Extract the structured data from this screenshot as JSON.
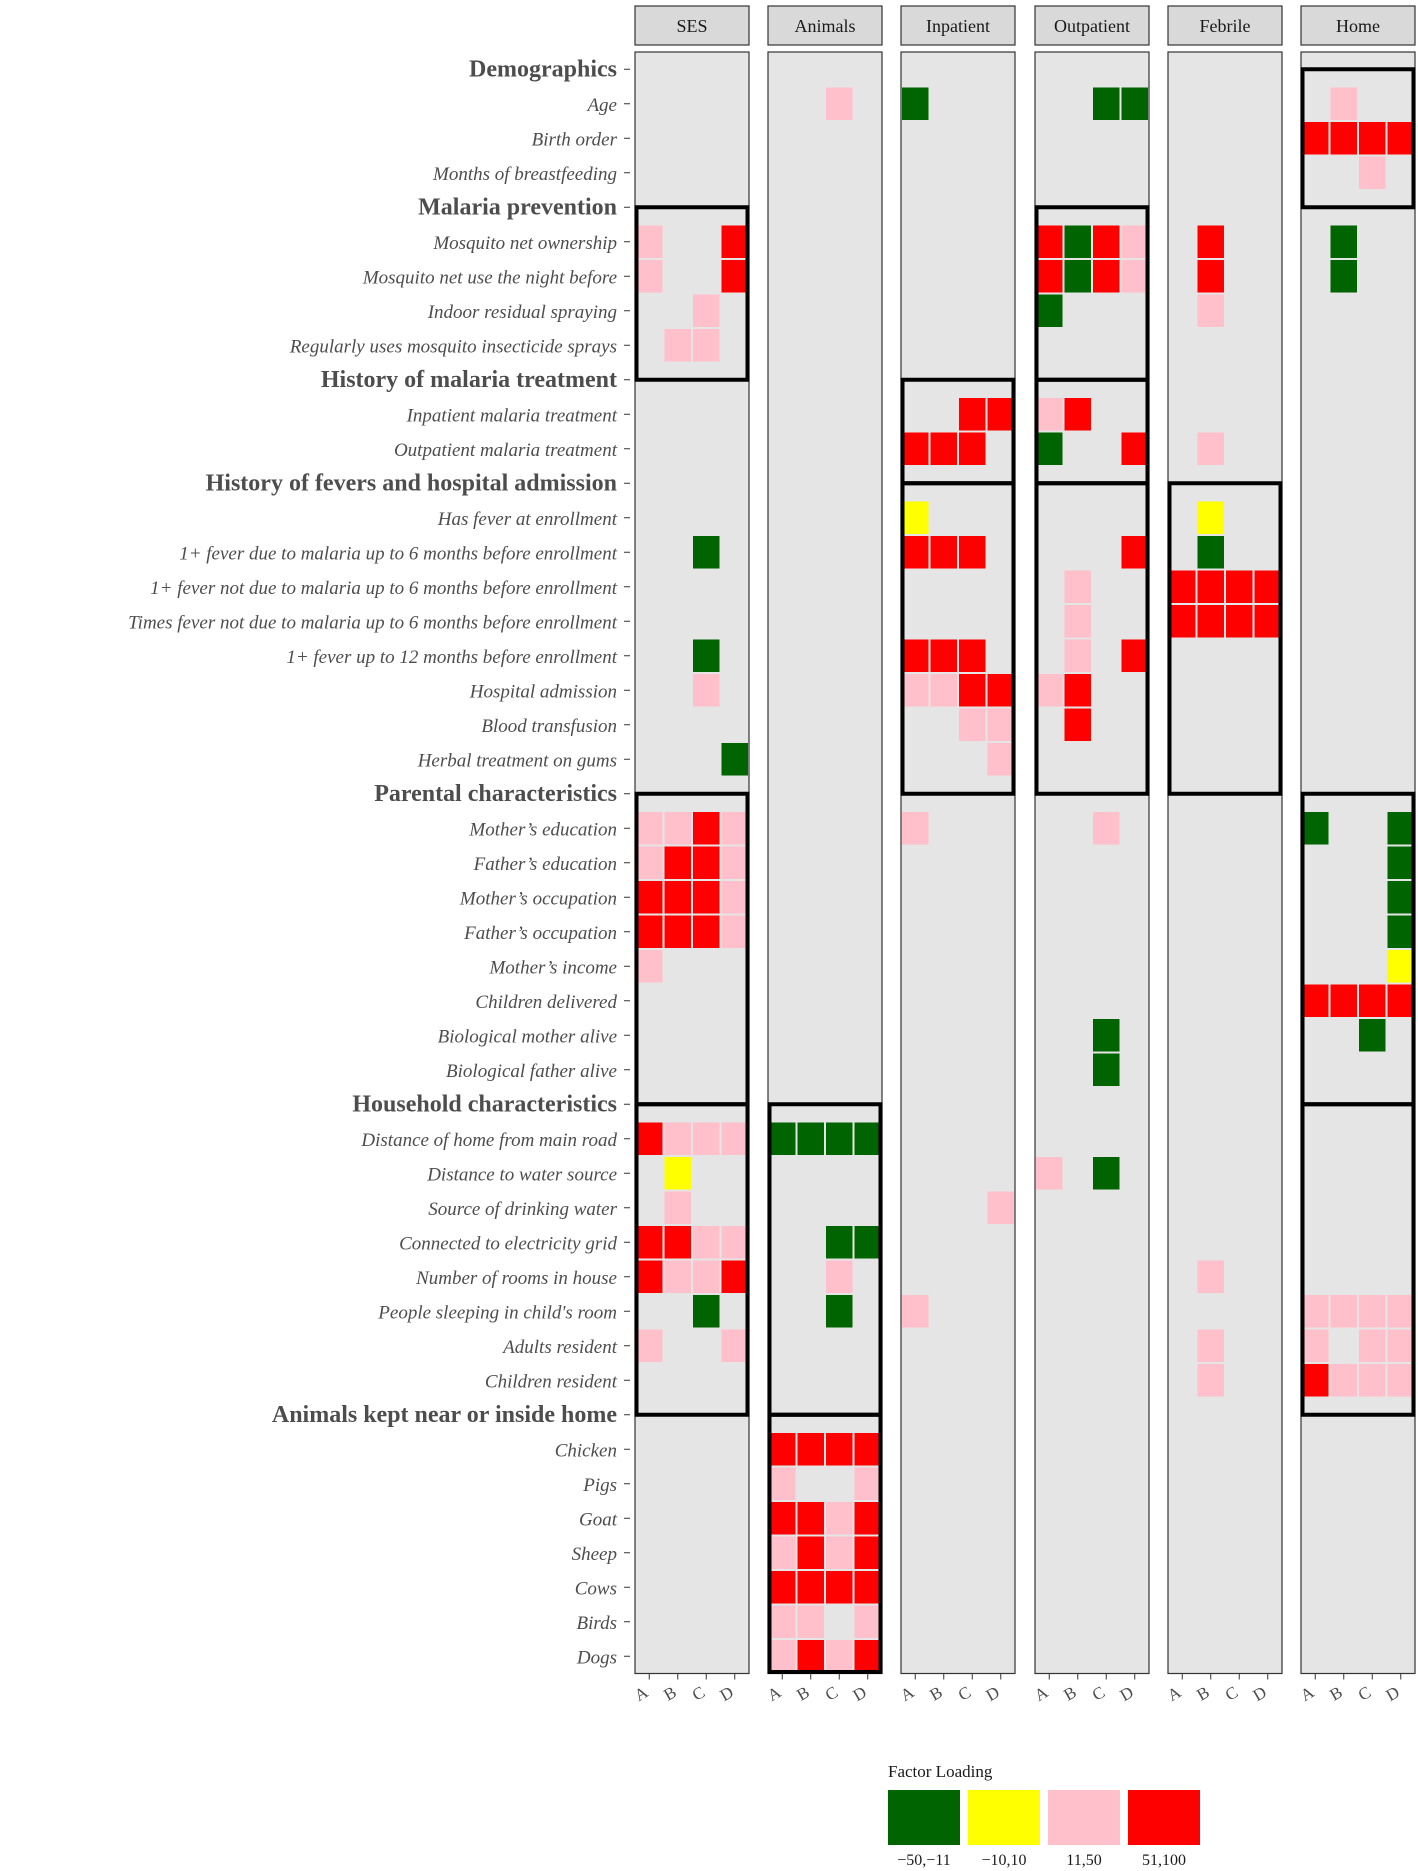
{
  "chart_data": {
    "type": "heatmap",
    "title": "",
    "panels": [
      "SES",
      "Animals",
      "Inpatient",
      "Outpatient",
      "Febrile",
      "Home"
    ],
    "factors": [
      "A",
      "B",
      "C",
      "D"
    ],
    "rows": [
      {
        "label": "Demographics",
        "kind": "group"
      },
      {
        "label": "Age",
        "kind": "var"
      },
      {
        "label": "Birth order",
        "kind": "var"
      },
      {
        "label": "Months of breastfeeding",
        "kind": "var"
      },
      {
        "label": "Malaria prevention",
        "kind": "group"
      },
      {
        "label": "Mosquito net ownership",
        "kind": "var"
      },
      {
        "label": "Mosquito net use the night before",
        "kind": "var"
      },
      {
        "label": "Indoor residual spraying",
        "kind": "var"
      },
      {
        "label": "Regularly uses mosquito insecticide sprays",
        "kind": "var"
      },
      {
        "label": "History of malaria treatment",
        "kind": "group"
      },
      {
        "label": "Inpatient malaria treatment",
        "kind": "var"
      },
      {
        "label": "Outpatient malaria treatment",
        "kind": "var"
      },
      {
        "label": "History of fevers and hospital admission",
        "kind": "group"
      },
      {
        "label": "Has fever at enrollment",
        "kind": "var"
      },
      {
        "label": "1+ fever due to malaria up to 6 months before enrollment",
        "kind": "var"
      },
      {
        "label": "1+ fever not due to malaria up to 6 months before enrollment",
        "kind": "var"
      },
      {
        "label": "Times fever not due to malaria up to 6 months before enrollment",
        "kind": "var"
      },
      {
        "label": "1+ fever up to 12 months before enrollment",
        "kind": "var"
      },
      {
        "label": "Hospital admission",
        "kind": "var"
      },
      {
        "label": "Blood transfusion",
        "kind": "var"
      },
      {
        "label": "Herbal treatment on gums",
        "kind": "var"
      },
      {
        "label": "Parental characteristics",
        "kind": "group"
      },
      {
        "label": "Mother’s education",
        "kind": "var"
      },
      {
        "label": "Father’s education",
        "kind": "var"
      },
      {
        "label": "Mother’s occupation",
        "kind": "var"
      },
      {
        "label": "Father’s occupation",
        "kind": "var"
      },
      {
        "label": "Mother’s income",
        "kind": "var"
      },
      {
        "label": "Children delivered",
        "kind": "var"
      },
      {
        "label": "Biological mother alive",
        "kind": "var"
      },
      {
        "label": "Biological father alive",
        "kind": "var"
      },
      {
        "label": "Household characteristics",
        "kind": "group"
      },
      {
        "label": "Distance of home from main road",
        "kind": "var"
      },
      {
        "label": "Distance to water source",
        "kind": "var"
      },
      {
        "label": "Source of drinking water",
        "kind": "var"
      },
      {
        "label": "Connected to electricity grid",
        "kind": "var"
      },
      {
        "label": "Number of rooms in house",
        "kind": "var"
      },
      {
        "label": "People sleeping in child's room",
        "kind": "var"
      },
      {
        "label": "Adults resident",
        "kind": "var"
      },
      {
        "label": "Children resident",
        "kind": "var"
      },
      {
        "label": "Animals kept near or inside home",
        "kind": "group"
      },
      {
        "label": "Chicken",
        "kind": "var"
      },
      {
        "label": "Pigs",
        "kind": "var"
      },
      {
        "label": "Goat",
        "kind": "var"
      },
      {
        "label": "Sheep",
        "kind": "var"
      },
      {
        "label": "Cows",
        "kind": "var"
      },
      {
        "label": "Birds",
        "kind": "var"
      },
      {
        "label": "Dogs",
        "kind": "var"
      }
    ],
    "loading_codes": {
      "g": "−50,−11",
      "y": "−10,10",
      "p": "11,50",
      "r": "51,100"
    },
    "cells": {
      "SES": [
        "....",
        "....",
        "....",
        "....",
        "....",
        "p..r",
        "p..r",
        "..p.",
        ".pp.",
        "....",
        "....",
        "....",
        "....",
        "....",
        "..g.",
        "....",
        "....",
        "..g.",
        "..p.",
        "....",
        "...g",
        "....",
        "pprp",
        "prrp",
        "rrrp",
        "rrrp",
        "p...",
        "....",
        "....",
        "....",
        "....",
        "rppp",
        ".y..",
        ".p..",
        "rrpp",
        "rppr",
        "..g.",
        "p..p",
        "....",
        "....",
        "....",
        "....",
        "....",
        "....",
        "....",
        "....",
        "...."
      ],
      "Animals": [
        "....",
        "..p.",
        "....",
        "....",
        "....",
        "....",
        "....",
        "....",
        "....",
        "....",
        "....",
        "....",
        "....",
        "....",
        "....",
        "....",
        "....",
        "....",
        "....",
        "....",
        "....",
        "....",
        "....",
        "....",
        "....",
        "....",
        "....",
        "....",
        "....",
        "....",
        "....",
        "gggg",
        "....",
        "....",
        "..gg",
        "..p.",
        "..g.",
        "....",
        "....",
        "....",
        "rrrr",
        "p..p",
        "rrpr",
        "prpr",
        "rrrr",
        "pp.p",
        "prpr"
      ],
      "Inpatient": [
        "....",
        "g...",
        "....",
        "....",
        "....",
        "....",
        "....",
        "....",
        "....",
        "....",
        "..rr",
        "rrr.",
        "....",
        "y...",
        "rrr.",
        "....",
        "....",
        "rrr.",
        "pprr",
        "..pp",
        "...p",
        "....",
        "p...",
        "....",
        "....",
        "....",
        "....",
        "....",
        "....",
        "....",
        "....",
        "....",
        "....",
        "...p",
        "....",
        "....",
        "p...",
        "....",
        "....",
        "....",
        "....",
        "....",
        "....",
        "....",
        "....",
        "....",
        "...."
      ],
      "Outpatient": [
        "....",
        "..gg",
        "....",
        "....",
        "....",
        "rgrp",
        "rgrp",
        "g...",
        "....",
        "....",
        "pr..",
        "g..r",
        "....",
        "....",
        "...r",
        ".p..",
        ".p..",
        ".p.r",
        "pr..",
        ".r..",
        "....",
        "....",
        "..p.",
        "....",
        "....",
        "....",
        "....",
        "....",
        "..g.",
        "..g.",
        "....",
        "....",
        "p.g.",
        "....",
        "....",
        "....",
        "....",
        "....",
        "....",
        "....",
        "....",
        "....",
        "....",
        "....",
        "....",
        "....",
        "...."
      ],
      "Febrile": [
        "....",
        "....",
        "....",
        "....",
        "....",
        ".r..",
        ".r..",
        ".p..",
        "....",
        "....",
        "....",
        ".p..",
        "....",
        ".y..",
        ".g..",
        "rrrr",
        "rrrr",
        "....",
        "....",
        "....",
        "....",
        "....",
        "....",
        "....",
        "....",
        "....",
        "....",
        "....",
        "....",
        "....",
        "....",
        "....",
        "....",
        "....",
        "....",
        ".p..",
        "....",
        ".p..",
        ".p..",
        "....",
        "....",
        "....",
        "....",
        "....",
        "....",
        "....",
        "...."
      ],
      "Home": [
        "....",
        ".p..",
        "rrrr",
        "..p.",
        "....",
        ".g..",
        ".g..",
        "....",
        "....",
        "....",
        "....",
        "....",
        "....",
        "....",
        "....",
        "....",
        "....",
        "....",
        "....",
        "....",
        "....",
        "....",
        "g..g",
        "...g",
        "...g",
        "...g",
        "...y",
        "rrrr",
        "..g.",
        "....",
        "....",
        "....",
        "....",
        "....",
        "....",
        "....",
        "pppp",
        "p.pp",
        "rppp",
        "....",
        "....",
        "....",
        "....",
        "....",
        "....",
        "....",
        "...."
      ]
    },
    "boxed_blocks": [
      {
        "panel": "SES",
        "group": "Malaria prevention"
      },
      {
        "panel": "SES",
        "group": "Parental characteristics"
      },
      {
        "panel": "SES",
        "group": "Household characteristics"
      },
      {
        "panel": "Animals",
        "group": "Household characteristics"
      },
      {
        "panel": "Animals",
        "group": "Animals kept near or inside home"
      },
      {
        "panel": "Inpatient",
        "group": "History of malaria treatment"
      },
      {
        "panel": "Inpatient",
        "group": "History of fevers and hospital admission"
      },
      {
        "panel": "Outpatient",
        "group": "Malaria prevention"
      },
      {
        "panel": "Outpatient",
        "group": "History of malaria treatment"
      },
      {
        "panel": "Outpatient",
        "group": "History of fevers and hospital admission"
      },
      {
        "panel": "Febrile",
        "group": "History of fevers and hospital admission"
      },
      {
        "panel": "Home",
        "group": "Demographics"
      },
      {
        "panel": "Home",
        "group": "Parental characteristics"
      },
      {
        "panel": "Home",
        "group": "Household characteristics"
      }
    ],
    "legend": {
      "title": "Factor Loading",
      "position": "bottom",
      "entries": [
        {
          "label": "−50,−11",
          "color": "#006400"
        },
        {
          "label": "−10,10",
          "color": "#ffff00"
        },
        {
          "label": "11,50",
          "color": "#ffc0cb"
        },
        {
          "label": "51,100",
          "color": "#ff0000"
        }
      ]
    },
    "colors": {
      "panel_bg": "#e5e5e5",
      "strip_bg": "#d9d9d9",
      "g": "#006400",
      "y": "#ffff00",
      "p": "#ffc0cb",
      "r": "#ff0000"
    }
  }
}
